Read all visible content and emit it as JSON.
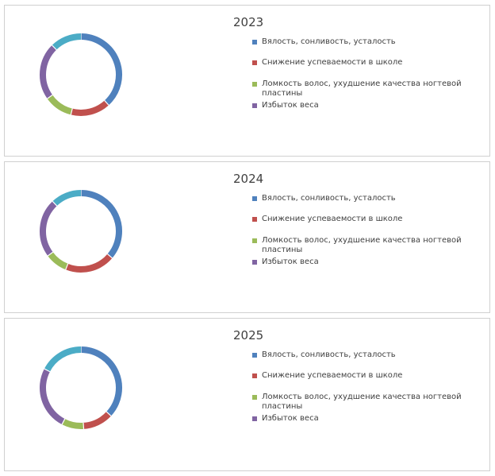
{
  "chart_data": [
    {
      "type": "pie",
      "title": "2023",
      "categories": [
        "Вялость, сонливость, усталость",
        "Снижение успеваемости в школе",
        "Ломкость волос, ухудшение качества ногтевой пластины",
        "Избыток веса",
        ""
      ],
      "values": [
        34,
        14,
        10,
        20,
        11
      ],
      "colors": [
        "#4f81bd",
        "#c0504d",
        "#9bbb59",
        "#8064a2",
        "#4bacc6"
      ],
      "legend": "right"
    },
    {
      "type": "pie",
      "title": "2024",
      "categories": [
        "Вялость, сонливость, усталость",
        "Снижение успеваемости в школе",
        "Ломкость волос, ухудшение качества ногтевой пластины",
        "Избыток веса",
        ""
      ],
      "values": [
        33,
        18,
        8,
        21,
        11
      ],
      "colors": [
        "#4f81bd",
        "#c0504d",
        "#9bbb59",
        "#8064a2",
        "#4bacc6"
      ],
      "legend": "right"
    },
    {
      "type": "pie",
      "title": "2025",
      "categories": [
        "Вялость, сонливость, усталость",
        "Снижение успеваемости в школе",
        "Ломкость волос, ухудшение качества ногтевой пластины",
        "Избыток веса",
        ""
      ],
      "values": [
        34,
        11,
        8,
        23,
        16
      ],
      "colors": [
        "#4f81bd",
        "#c0504d",
        "#9bbb59",
        "#8064a2",
        "#4bacc6"
      ],
      "legend": "right"
    }
  ]
}
